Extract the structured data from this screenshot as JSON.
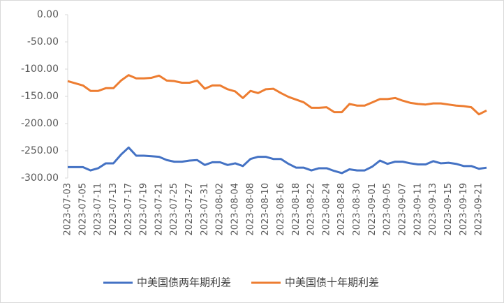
{
  "chart_data": {
    "type": "line",
    "categories": [
      "2023-07-03",
      null,
      "2023-07-05",
      null,
      "2023-07-11",
      null,
      "2023-07-13",
      null,
      "2023-07-17",
      null,
      "2023-07-19",
      null,
      "2023-07-21",
      null,
      "2023-07-25",
      null,
      "2023-07-27",
      null,
      "2023-07-31",
      null,
      "2023-08-02",
      null,
      "2023-08-04",
      null,
      "2023-08-08",
      null,
      "2023-08-10",
      null,
      "2023-08-16",
      null,
      "2023-08-18",
      null,
      "2023-08-22",
      null,
      "2023-08-24",
      null,
      "2023-08-28",
      null,
      "2023-08-30",
      null,
      "2023-09-01",
      null,
      "2023-09-05",
      null,
      "2023-09-07",
      null,
      "2023-09-11",
      null,
      "2023-09-13",
      null,
      "2023-09-15",
      null,
      "2023-09-19",
      null,
      "2023-09-21",
      null
    ],
    "series": [
      {
        "name": "中美国债两年期利差",
        "color": "#4472c4",
        "values": [
          -280,
          -280,
          -280,
          -286,
          -282,
          -273,
          -273,
          -257,
          -244,
          -259,
          -259,
          -260,
          -261,
          -267,
          -270,
          -270,
          -268,
          -267,
          -276,
          -271,
          -271,
          -276,
          -273,
          -278,
          -265,
          -261,
          -261,
          -265,
          -265,
          -274,
          -281,
          -281,
          -286,
          -282,
          -282,
          -287,
          -291,
          -284,
          -286,
          -286,
          -279,
          -268,
          -274,
          -270,
          -270,
          -273,
          -275,
          -275,
          -269,
          -273,
          -272,
          -274,
          -278,
          -278,
          -283,
          -281
        ]
      },
      {
        "name": "中美国债十年期利差",
        "color": "#ed7d31",
        "values": [
          -122,
          -126,
          -130,
          -140,
          -140,
          -135,
          -135,
          -121,
          -111,
          -117,
          -117,
          -116,
          -112,
          -121,
          -122,
          -125,
          -125,
          -121,
          -136,
          -130,
          -130,
          -137,
          -141,
          -153,
          -140,
          -144,
          -137,
          -136,
          -144,
          -151,
          -156,
          -161,
          -171,
          -171,
          -170,
          -179,
          -179,
          -164,
          -167,
          -167,
          -161,
          -155,
          -155,
          -153,
          -158,
          -162,
          -164,
          -165,
          -163,
          -163,
          -165,
          -167,
          -168,
          -170,
          -183,
          -176
        ]
      }
    ],
    "ylim": [
      -300,
      0
    ],
    "yticks": [
      {
        "value": -300,
        "label": "-300.00"
      },
      {
        "value": -250,
        "label": "-250.00"
      },
      {
        "value": -200,
        "label": "-200.00"
      },
      {
        "value": -150,
        "label": "-150.00"
      },
      {
        "value": -100,
        "label": "-100.00"
      },
      {
        "value": -50,
        "label": "-50.00"
      },
      {
        "value": 0,
        "label": "0.00"
      }
    ],
    "legend": "bottom"
  }
}
